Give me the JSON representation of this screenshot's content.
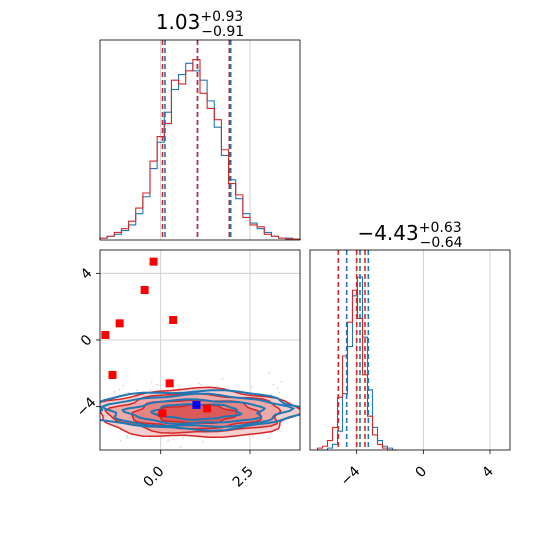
{
  "chart_data": {
    "type": "corner",
    "colors": {
      "blue": "#1f77b4",
      "red": "#d62728",
      "marker_red": "#ff0000",
      "marker_blue": "#0000ff"
    },
    "grid": true,
    "panels": {
      "param1_hist": {
        "title": {
          "base": "1.03",
          "sup": "+0.93",
          "sub": "−0.91"
        },
        "xlim": [
          -1.7,
          3.9
        ],
        "ylim": [
          0,
          1
        ],
        "quantiles": {
          "blue": [
            0.12,
            1.03,
            1.96
          ],
          "red": [
            0.05,
            1.03,
            1.92
          ]
        },
        "x": [
          -1.6,
          -1.4,
          -1.2,
          -1.0,
          -0.8,
          -0.6,
          -0.4,
          -0.2,
          0.0,
          0.2,
          0.4,
          0.6,
          0.8,
          1.0,
          1.2,
          1.4,
          1.6,
          1.8,
          2.0,
          2.2,
          2.4,
          2.6,
          2.8,
          3.0,
          3.2,
          3.4,
          3.6,
          3.8
        ],
        "series": [
          {
            "color": "blue",
            "values": [
              0.01,
              0.02,
              0.03,
              0.05,
              0.08,
              0.14,
              0.23,
              0.38,
              0.52,
              0.68,
              0.8,
              0.88,
              0.94,
              0.9,
              0.85,
              0.74,
              0.6,
              0.45,
              0.32,
              0.22,
              0.14,
              0.09,
              0.06,
              0.04,
              0.02,
              0.01,
              0.01,
              0.005
            ]
          },
          {
            "color": "red",
            "values": [
              0.01,
              0.02,
              0.04,
              0.06,
              0.1,
              0.17,
              0.25,
              0.42,
              0.55,
              0.62,
              0.85,
              0.83,
              0.9,
              0.96,
              0.78,
              0.7,
              0.64,
              0.48,
              0.3,
              0.24,
              0.12,
              0.08,
              0.07,
              0.03,
              0.02,
              0.01,
              0.005,
              0.005
            ]
          }
        ]
      },
      "param2_hist": {
        "title": {
          "base": "−4.43",
          "sup": "+0.63",
          "sub": "−0.64"
        },
        "xlim": [
          -6.8,
          5.2
        ],
        "ylim": [
          0,
          1
        ],
        "quantiles": {
          "blue": [
            -4.6,
            -3.8,
            -3.3
          ],
          "red": [
            -5.1,
            -4.0,
            -3.5
          ]
        },
        "x": [
          -6.2,
          -5.9,
          -5.6,
          -5.3,
          -5.0,
          -4.7,
          -4.4,
          -4.1,
          -3.8,
          -3.5,
          -3.2,
          -2.9,
          -2.6,
          -2.3,
          -2.0,
          -1.7
        ],
        "series": [
          {
            "color": "blue",
            "values": [
              0.0,
              0.0,
              0.01,
              0.03,
              0.1,
              0.3,
              0.55,
              0.82,
              0.92,
              0.6,
              0.32,
              0.12,
              0.05,
              0.02,
              0.01,
              0.0
            ]
          },
          {
            "color": "red",
            "values": [
              0.01,
              0.02,
              0.05,
              0.12,
              0.28,
              0.5,
              0.68,
              0.85,
              0.7,
              0.4,
              0.18,
              0.08,
              0.03,
              0.01,
              0.0,
              0.0
            ]
          }
        ]
      },
      "joint": {
        "xlim": [
          -1.7,
          3.9
        ],
        "ylim": [
          -6.6,
          5.4
        ],
        "x_ticks": [
          "0.0",
          "2.5"
        ],
        "y_ticks": [
          "4",
          "0",
          "−4"
        ],
        "contours_blue": [
          {
            "cx": 1.0,
            "cy": -4.2,
            "rx": 2.9,
            "ry": 1.15
          },
          {
            "cx": 1.0,
            "cy": -4.25,
            "rx": 2.5,
            "ry": 0.95
          },
          {
            "cx": 1.0,
            "cy": -4.3,
            "rx": 1.9,
            "ry": 0.7
          },
          {
            "cx": 1.0,
            "cy": -4.3,
            "rx": 1.2,
            "ry": 0.45
          }
        ],
        "contours_red": [
          {
            "cx": 1.0,
            "cy": -4.4,
            "rx": 2.8,
            "ry": 1.45
          },
          {
            "cx": 1.0,
            "cy": -4.4,
            "rx": 2.4,
            "ry": 1.15
          },
          {
            "cx": 1.0,
            "cy": -4.45,
            "rx": 1.8,
            "ry": 0.85
          },
          {
            "cx": 1.0,
            "cy": -4.45,
            "rx": 1.1,
            "ry": 0.55
          }
        ],
        "red_points": [
          {
            "x": -0.2,
            "y": 4.7
          },
          {
            "x": -0.45,
            "y": 3.0
          },
          {
            "x": 0.35,
            "y": 1.2
          },
          {
            "x": -1.15,
            "y": 1.0
          },
          {
            "x": -1.55,
            "y": 0.3
          },
          {
            "x": -1.35,
            "y": -2.1
          },
          {
            "x": 0.25,
            "y": -2.6
          },
          {
            "x": 1.3,
            "y": -4.1
          },
          {
            "x": 0.05,
            "y": -4.4
          }
        ],
        "blue_point": {
          "x": 1.0,
          "y": -3.9
        }
      },
      "param2_axis": {
        "x_ticks": [
          "−4",
          "0",
          "4"
        ]
      }
    }
  }
}
